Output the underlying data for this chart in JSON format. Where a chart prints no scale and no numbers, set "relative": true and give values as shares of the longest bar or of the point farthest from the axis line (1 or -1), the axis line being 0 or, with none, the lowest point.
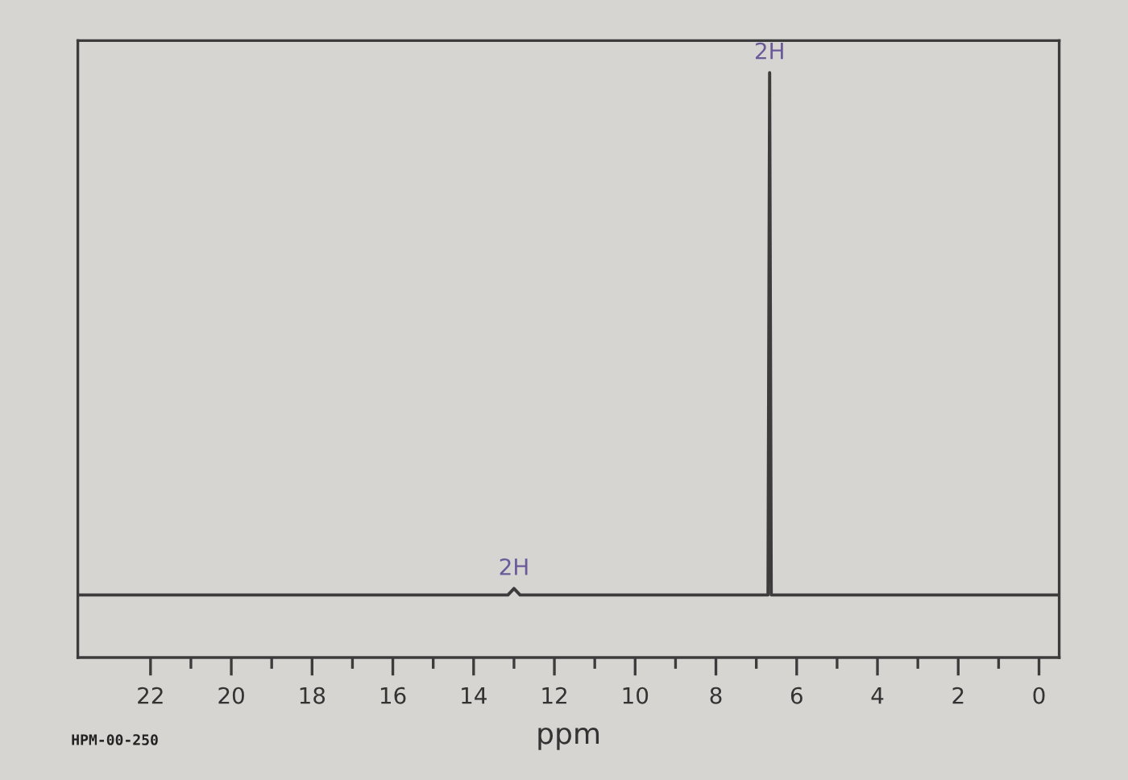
{
  "chart_data": {
    "type": "line",
    "relative": true,
    "xlabel": "ppm",
    "xlim": [
      23.8,
      -0.5
    ],
    "xticks": [
      22,
      {
        "value": 21,
        "label": null
      },
      20,
      {
        "value": 19,
        "label": null
      },
      18,
      {
        "value": 17,
        "label": null
      },
      16,
      {
        "value": 15,
        "label": null
      },
      14,
      {
        "value": 13,
        "label": null
      },
      12,
      {
        "value": 11,
        "label": null
      },
      10,
      {
        "value": 9,
        "label": null
      },
      8,
      {
        "value": 7,
        "label": null
      },
      6,
      {
        "value": 5,
        "label": null
      },
      4,
      {
        "value": 3,
        "label": null
      },
      2,
      {
        "value": 1,
        "label": null
      },
      0
    ],
    "series": [
      {
        "color": "#3c3c3c",
        "x": [
          23.8,
          13.15,
          13.0,
          12.85,
          6.71,
          6.67,
          6.63,
          -0.5
        ],
        "values": [
          0.107,
          0.107,
          0.118,
          0.107,
          0.107,
          1,
          0.107,
          0.107
        ]
      }
    ],
    "annotations": [
      {
        "text": "2H",
        "x": 13.0,
        "y": 0.118
      },
      {
        "text": "2H",
        "x": 6.67,
        "y": 1
      },
      "HPM-00-250"
    ],
    "line_style": "solid"
  }
}
